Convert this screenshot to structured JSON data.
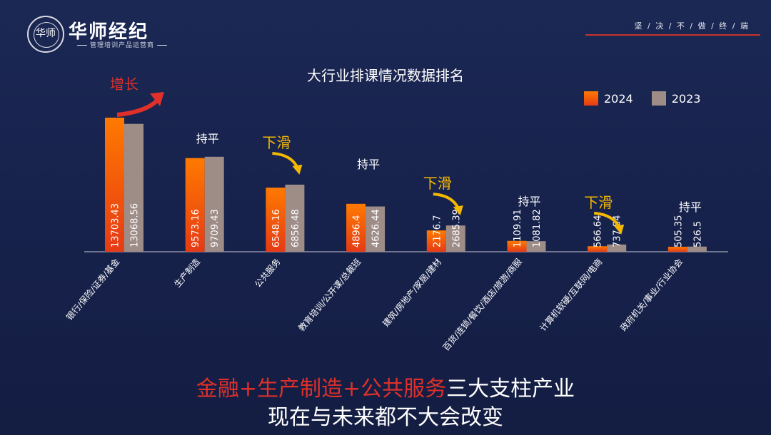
{
  "header": {
    "logo_text": "华师",
    "brand": "华师经纪",
    "brand_sub": "管理培训产品运营商",
    "slogan": "坚 / 决 / 不 / 做 / 终 / 端"
  },
  "legend": {
    "a": "2024",
    "b": "2023"
  },
  "footer": {
    "line1_red": "金融+生产制造+公共服务",
    "line1_white": "三大支柱产业",
    "line2": "现在与未来都不大会改变"
  },
  "colors": {
    "y2024_top": "#ff7a00",
    "y2024_bottom": "#e63a15",
    "y2023": "#9e8c87",
    "annotation_red": "#e0302a",
    "annotation_yellow": "#f5b800"
  },
  "chart_data": {
    "type": "bar",
    "title": "大行业排课情况数据排名",
    "categories": [
      "银行/保险/证券/基金",
      "生产制造",
      "公共服务",
      "教育培训/公开课/总裁班",
      "建筑/房地产/家居/建材",
      "百货/连锁/餐饮/酒店/旅游/商服",
      "计算机软硬/互联网/电商",
      "政府机关/事业/行业协会"
    ],
    "series": [
      {
        "name": "2024",
        "values": [
          13703.43,
          9573.16,
          6548.16,
          4896.4,
          2176.7,
          1109.91,
          566.64,
          505.35
        ],
        "labels": [
          "13703.43",
          "9573.16",
          "6548.16",
          "4896.4",
          "2176.7",
          "1109.91",
          "566.64",
          "505.35"
        ]
      },
      {
        "name": "2023",
        "values": [
          13068.56,
          9709.43,
          6856.48,
          4626.44,
          2685.39,
          1081.82,
          737.84,
          526.5
        ],
        "labels": [
          "13068.56",
          "9709.43",
          "6856.48",
          "4626.44",
          "2685.39",
          "1081.82",
          "737.84",
          "526.5"
        ]
      }
    ],
    "annotations": [
      "增长",
      "持平",
      "下滑",
      "持平",
      "下滑",
      "持平",
      "下滑",
      "持平"
    ],
    "grid": false
  }
}
